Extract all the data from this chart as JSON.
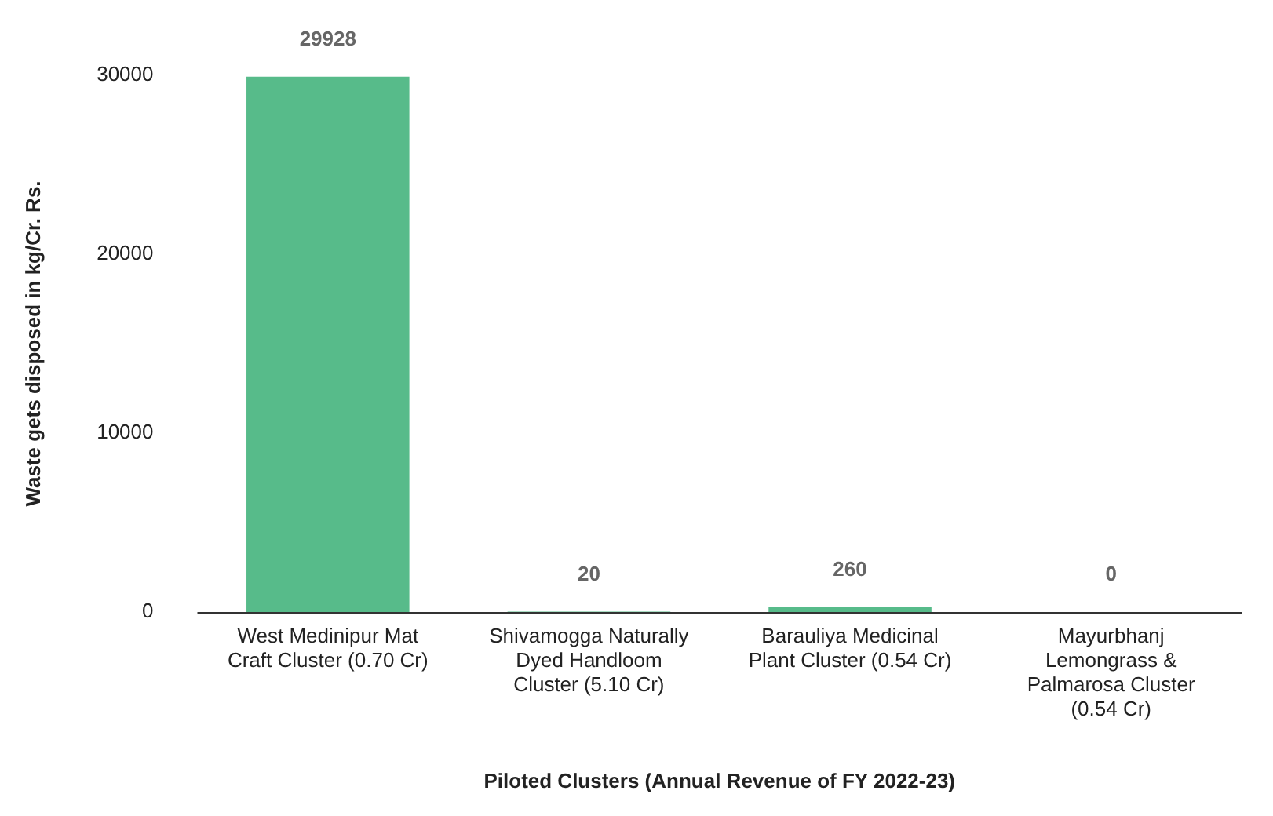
{
  "chart_data": {
    "type": "bar",
    "xlabel": "Piloted Clusters (Annual Revenue of FY 2022-23)",
    "ylabel": "Waste gets disposed in kg/Cr. Rs.",
    "categories": [
      "West Medinipur Mat Craft Cluster (0.70 Cr)",
      "Shivamogga Naturally Dyed Handloom Cluster (5.10 Cr)",
      "Barauliya Medicinal Plant Cluster (0.54 Cr)",
      "Mayurbhanj Lemongrass & Palmarosa Cluster (0.54 Cr)"
    ],
    "values": [
      29928,
      20,
      260,
      0
    ],
    "color": "#57bb8a",
    "ylim": [
      0,
      30000
    ],
    "yticks": [
      0,
      10000,
      20000,
      30000
    ],
    "grid": false,
    "legend": false,
    "data_labels": true
  }
}
